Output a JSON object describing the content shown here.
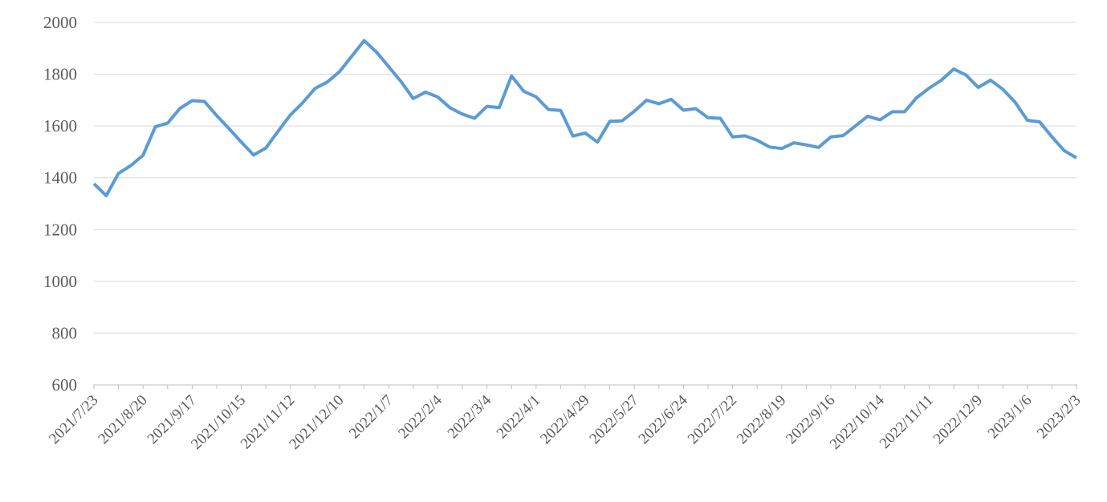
{
  "chart_data": {
    "type": "line",
    "title": "",
    "xlabel": "",
    "ylabel": "",
    "ylim": [
      600,
      2000
    ],
    "ytick_step": 200,
    "ytick_labels": [
      "600",
      "800",
      "1000",
      "1200",
      "1400",
      "1600",
      "1800",
      "2000"
    ],
    "xtick_label_every": 4,
    "minor_tick_every": 2,
    "grid": true,
    "legend_position": "none",
    "line_color": "#5B9BD5",
    "gridline_color": "#D9D9D9",
    "axis_color": "#BFBFBF",
    "label_color": "#595959",
    "x": [
      "2021/7/23",
      "2021/7/30",
      "2021/8/6",
      "2021/8/13",
      "2021/8/20",
      "2021/8/27",
      "2021/9/3",
      "2021/9/10",
      "2021/9/17",
      "2021/9/24",
      "2021/10/1",
      "2021/10/8",
      "2021/10/15",
      "2021/10/22",
      "2021/10/29",
      "2021/11/5",
      "2021/11/12",
      "2021/11/19",
      "2021/11/26",
      "2021/12/3",
      "2021/12/10",
      "2021/12/17",
      "2021/12/24",
      "2021/12/31",
      "2022/1/7",
      "2022/1/14",
      "2022/1/21",
      "2022/1/28",
      "2022/2/4",
      "2022/2/11",
      "2022/2/18",
      "2022/2/25",
      "2022/3/4",
      "2022/3/11",
      "2022/3/18",
      "2022/3/25",
      "2022/4/1",
      "2022/4/8",
      "2022/4/15",
      "2022/4/22",
      "2022/4/29",
      "2022/5/6",
      "2022/5/13",
      "2022/5/20",
      "2022/5/27",
      "2022/6/3",
      "2022/6/10",
      "2022/6/17",
      "2022/6/24",
      "2022/7/1",
      "2022/7/8",
      "2022/7/15",
      "2022/7/22",
      "2022/7/29",
      "2022/8/5",
      "2022/8/12",
      "2022/8/19",
      "2022/8/26",
      "2022/9/2",
      "2022/9/9",
      "2022/9/16",
      "2022/9/23",
      "2022/9/30",
      "2022/10/7",
      "2022/10/14",
      "2022/10/21",
      "2022/10/28",
      "2022/11/4",
      "2022/11/11",
      "2022/11/18",
      "2022/11/25",
      "2022/12/2",
      "2022/12/9",
      "2022/12/16",
      "2022/12/23",
      "2022/12/30",
      "2023/1/6",
      "2023/1/13",
      "2023/1/20",
      "2023/1/27",
      "2023/2/3"
    ],
    "values": [
      1377,
      1331,
      1417,
      1447,
      1487,
      1597,
      1611,
      1668,
      1698,
      1695,
      1640,
      1590,
      1538,
      1488,
      1515,
      1580,
      1643,
      1690,
      1745,
      1770,
      1810,
      1870,
      1930,
      1886,
      1829,
      1772,
      1706,
      1731,
      1712,
      1670,
      1646,
      1630,
      1676,
      1671,
      1793,
      1734,
      1713,
      1664,
      1660,
      1561,
      1573,
      1538,
      1618,
      1620,
      1657,
      1700,
      1686,
      1703,
      1661,
      1667,
      1632,
      1630,
      1558,
      1562,
      1545,
      1519,
      1513,
      1535,
      1527,
      1517,
      1558,
      1563,
      1600,
      1638,
      1624,
      1655,
      1655,
      1710,
      1746,
      1777,
      1820,
      1797,
      1749,
      1777,
      1742,
      1692,
      1622,
      1616,
      1558,
      1505,
      1477
    ]
  }
}
